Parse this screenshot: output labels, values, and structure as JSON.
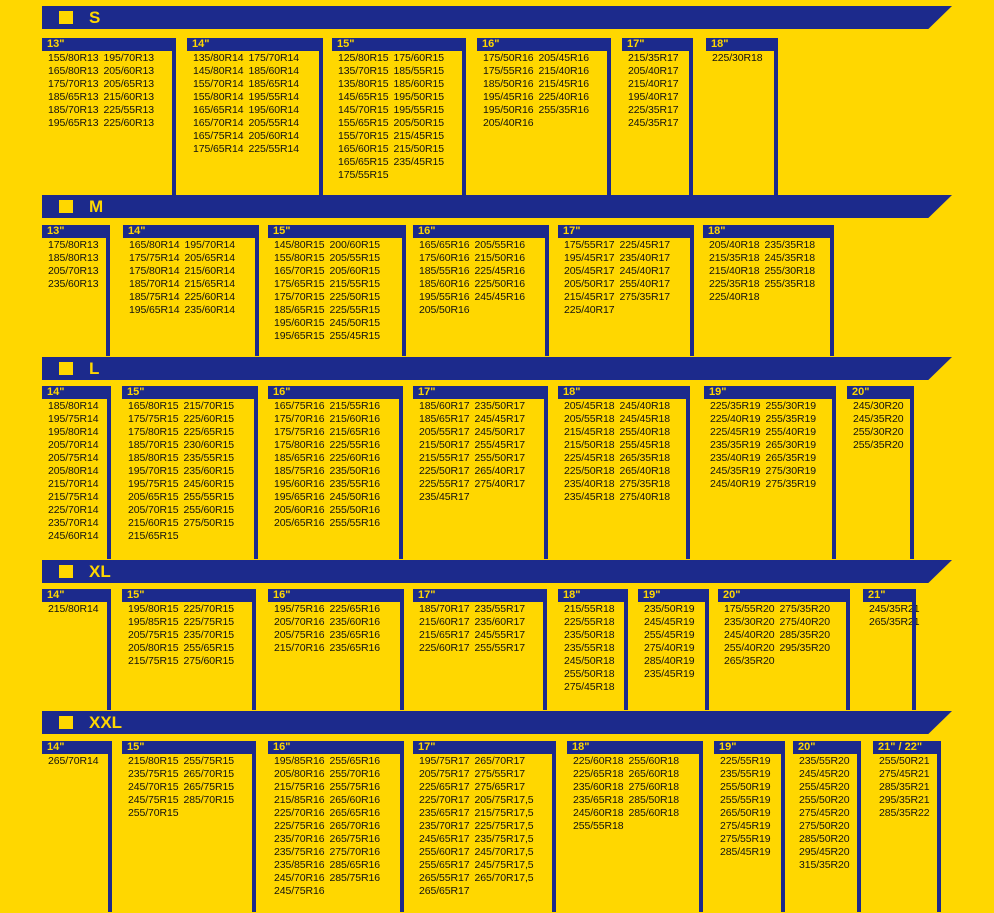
{
  "colors": {
    "background": "#FFD700",
    "navy": "#1C2A8C",
    "text": "#111111"
  },
  "sections": [
    {
      "label": "S",
      "columns": [
        {
          "head": "13\"",
          "tyres": [
            [
              "155/80R13",
              "165/80R13",
              "175/70R13",
              "185/65R13",
              "185/70R13",
              "195/65R13"
            ],
            [
              "195/70R13",
              "205/60R13",
              "205/65R13",
              "215/60R13",
              "225/55R13",
              "225/60R13"
            ]
          ]
        },
        {
          "head": "14\"",
          "tyres": [
            [
              "135/80R14",
              "145/80R14",
              "155/70R14",
              "155/80R14",
              "165/65R14",
              "165/70R14",
              "165/75R14",
              "175/65R14"
            ],
            [
              "175/70R14",
              "185/60R14",
              "185/65R14",
              "195/55R14",
              "195/60R14",
              "205/55R14",
              "205/60R14",
              "225/55R14"
            ]
          ]
        },
        {
          "head": "15\"",
          "tyres": [
            [
              "125/80R15",
              "135/70R15",
              "135/80R15",
              "145/65R15",
              "145/70R15",
              "155/65R15",
              "155/70R15",
              "165/60R15",
              "165/65R15",
              "175/55R15"
            ],
            [
              "175/60R15",
              "185/55R15",
              "185/60R15",
              "195/50R15",
              "195/55R15",
              "205/50R15",
              "215/45R15",
              "215/50R15",
              "235/45R15"
            ]
          ]
        },
        {
          "head": "16\"",
          "tyres": [
            [
              "175/50R16",
              "175/55R16",
              "185/50R16",
              "195/45R16",
              "195/50R16",
              "205/40R16"
            ],
            [
              "205/45R16",
              "215/40R16",
              "215/45R16",
              "225/40R16",
              "255/35R16"
            ]
          ]
        },
        {
          "head": "17\"",
          "tyres": [
            [
              "215/35R17",
              "205/40R17",
              "215/40R17",
              "195/40R17",
              "225/35R17",
              "245/35R17"
            ]
          ]
        },
        {
          "head": "18\"",
          "tyres": [
            [
              "225/30R18"
            ]
          ]
        }
      ]
    },
    {
      "label": "M",
      "columns": [
        {
          "head": "13\"",
          "tyres": [
            [
              "175/80R13",
              "185/80R13",
              "205/70R13",
              "235/60R13"
            ]
          ]
        },
        {
          "head": "14\"",
          "tyres": [
            [
              "165/80R14",
              "175/75R14",
              "175/80R14",
              "185/70R14",
              "185/75R14",
              "195/65R14"
            ],
            [
              "195/70R14",
              "205/65R14",
              "215/60R14",
              "215/65R14",
              "225/60R14",
              "235/60R14"
            ]
          ]
        },
        {
          "head": "15\"",
          "tyres": [
            [
              "145/80R15",
              "155/80R15",
              "165/70R15",
              "175/65R15",
              "175/70R15",
              "185/65R15",
              "195/60R15",
              "195/65R15"
            ],
            [
              "200/60R15",
              "205/55R15",
              "205/60R15",
              "215/55R15",
              "225/50R15",
              "225/55R15",
              "245/50R15",
              "255/45R15"
            ]
          ]
        },
        {
          "head": "16\"",
          "tyres": [
            [
              "165/65R16",
              "175/60R16",
              "185/55R16",
              "185/60R16",
              "195/55R16",
              "205/50R16"
            ],
            [
              "205/55R16",
              "215/50R16",
              "225/45R16",
              "225/50R16",
              "245/45R16"
            ]
          ]
        },
        {
          "head": "17\"",
          "tyres": [
            [
              "175/55R17",
              "195/45R17",
              "205/45R17",
              "205/50R17",
              "215/45R17",
              "225/40R17"
            ],
            [
              "225/45R17",
              "235/40R17",
              "245/40R17",
              "255/40R17",
              "275/35R17"
            ]
          ]
        },
        {
          "head": "18\"",
          "tyres": [
            [
              "205/40R18",
              "215/35R18",
              "215/40R18",
              "225/35R18",
              "225/40R18"
            ],
            [
              "235/35R18",
              "245/35R18",
              "255/30R18",
              "255/35R18"
            ]
          ]
        }
      ]
    },
    {
      "label": "L",
      "columns": [
        {
          "head": "14\"",
          "tyres": [
            [
              "185/80R14",
              "195/75R14",
              "195/80R14",
              "205/70R14",
              "205/75R14",
              "205/80R14",
              "215/70R14",
              "215/75R14",
              "225/70R14",
              "235/70R14",
              "245/60R14"
            ]
          ]
        },
        {
          "head": "15\"",
          "tyres": [
            [
              "165/80R15",
              "175/75R15",
              "175/80R15",
              "185/70R15",
              "185/80R15",
              "195/70R15",
              "195/75R15",
              "205/65R15",
              "205/70R15",
              "215/60R15",
              "215/65R15"
            ],
            [
              "215/70R15",
              "225/60R15",
              "225/65R15",
              "230/60R15",
              "235/55R15",
              "235/60R15",
              "245/60R15",
              "255/55R15",
              "255/60R15",
              "275/50R15"
            ]
          ]
        },
        {
          "head": "16\"",
          "tyres": [
            [
              "165/75R16",
              "175/70R16",
              "175/75R16",
              "175/80R16",
              "185/65R16",
              "185/75R16",
              "195/60R16",
              "195/65R16",
              "205/60R16",
              "205/65R16"
            ],
            [
              "215/55R16",
              "215/60R16",
              "215/65R16",
              "225/55R16",
              "225/60R16",
              "235/50R16",
              "235/55R16",
              "245/50R16",
              "255/50R16",
              "255/55R16"
            ]
          ]
        },
        {
          "head": "17\"",
          "tyres": [
            [
              "185/60R17",
              "185/65R17",
              "205/55R17",
              "215/50R17",
              "215/55R17",
              "225/50R17",
              "225/55R17",
              "235/45R17"
            ],
            [
              "235/50R17",
              "245/45R17",
              "245/50R17",
              "255/45R17",
              "255/50R17",
              "265/40R17",
              "275/40R17"
            ]
          ]
        },
        {
          "head": "18\"",
          "tyres": [
            [
              "205/45R18",
              "205/55R18",
              "215/45R18",
              "215/50R18",
              "225/45R18",
              "225/50R18",
              "235/40R18",
              "235/45R18"
            ],
            [
              "245/40R18",
              "245/45R18",
              "255/40R18",
              "255/45R18",
              "265/35R18",
              "265/40R18",
              "275/35R18",
              "275/40R18"
            ]
          ]
        },
        {
          "head": "19\"",
          "tyres": [
            [
              "225/35R19",
              "225/40R19",
              "225/45R19",
              "235/35R19",
              "235/40R19",
              "245/35R19",
              "245/40R19"
            ],
            [
              "255/30R19",
              "255/35R19",
              "255/40R19",
              "265/30R19",
              "265/35R19",
              "275/30R19",
              "275/35R19"
            ]
          ]
        },
        {
          "head": "20\"",
          "tyres": [
            [
              "245/30R20",
              "245/35R20",
              "255/30R20",
              "255/35R20"
            ]
          ]
        }
      ]
    },
    {
      "label": "XL",
      "columns": [
        {
          "head": "14\"",
          "tyres": [
            [
              "215/80R14"
            ]
          ]
        },
        {
          "head": "15\"",
          "tyres": [
            [
              "195/80R15",
              "195/85R15",
              "205/75R15",
              "205/80R15",
              "215/75R15"
            ],
            [
              "225/70R15",
              "225/75R15",
              "235/70R15",
              "255/65R15",
              "275/60R15"
            ]
          ]
        },
        {
          "head": "16\"",
          "tyres": [
            [
              "195/75R16",
              "205/70R16",
              "205/75R16",
              "215/70R16"
            ],
            [
              "225/65R16",
              "235/60R16",
              "235/65R16",
              "235/65R16"
            ]
          ]
        },
        {
          "head": "17\"",
          "tyres": [
            [
              "185/70R17",
              "215/60R17",
              "215/65R17",
              "225/60R17"
            ],
            [
              "235/55R17",
              "235/60R17",
              "245/55R17",
              "255/55R17"
            ]
          ]
        },
        {
          "head": "18\"",
          "tyres": [
            [
              "215/55R18",
              "225/55R18",
              "235/50R18",
              "235/55R18",
              "245/50R18",
              "255/50R18",
              "275/45R18"
            ]
          ]
        },
        {
          "head": "19\"",
          "tyres": [
            [
              "235/50R19",
              "245/45R19",
              "255/45R19",
              "275/40R19",
              "285/40R19",
              "235/45R19"
            ]
          ]
        },
        {
          "head": "20\"",
          "tyres": [
            [
              "175/55R20",
              "235/30R20",
              "245/40R20",
              "255/40R20",
              "265/35R20"
            ],
            [
              "275/35R20",
              "275/40R20",
              "285/35R20",
              "295/35R20"
            ]
          ]
        },
        {
          "head": "21\"",
          "tyres": [
            [
              "245/35R21",
              "265/35R21"
            ]
          ]
        }
      ]
    },
    {
      "label": "XXL",
      "columns": [
        {
          "head": "14\"",
          "tyres": [
            [
              "265/70R14"
            ]
          ]
        },
        {
          "head": "15\"",
          "tyres": [
            [
              "215/80R15",
              "235/75R15",
              "245/70R15",
              "245/75R15",
              "255/70R15"
            ],
            [
              "255/75R15",
              "265/70R15",
              "265/75R15",
              "285/70R15"
            ]
          ]
        },
        {
          "head": "16\"",
          "tyres": [
            [
              "195/85R16",
              "205/80R16",
              "215/75R16",
              "215/85R16",
              "225/70R16",
              "225/75R16",
              "235/70R16",
              "235/75R16",
              "235/85R16",
              "245/70R16",
              "245/75R16"
            ],
            [
              "255/65R16",
              "255/70R16",
              "255/75R16",
              "265/60R16",
              "265/65R16",
              "265/70R16",
              "265/75R16",
              "275/70R16",
              "285/65R16",
              "285/75R16"
            ]
          ]
        },
        {
          "head": "17\"",
          "tyres": [
            [
              "195/75R17",
              "205/75R17",
              "225/65R17",
              "225/70R17",
              "235/65R17",
              "235/70R17",
              "245/65R17",
              "255/60R17",
              "255/65R17",
              "265/55R17",
              "265/65R17"
            ],
            [
              "265/70R17",
              "275/55R17",
              "275/65R17",
              "205/75R17,5",
              "215/75R17,5",
              "225/75R17,5",
              "235/75R17,5",
              "245/70R17,5",
              "245/75R17,5",
              "265/70R17,5"
            ]
          ]
        },
        {
          "head": "18\"",
          "tyres": [
            [
              "225/60R18",
              "225/65R18",
              "235/60R18",
              "235/65R18",
              "245/60R18",
              "255/55R18"
            ],
            [
              "255/60R18",
              "265/60R18",
              "275/60R18",
              "285/50R18",
              "285/60R18"
            ]
          ]
        },
        {
          "head": "19\"",
          "tyres": [
            [
              "225/55R19",
              "235/55R19",
              "255/50R19",
              "255/55R19",
              "265/50R19",
              "275/45R19",
              "275/55R19",
              "285/45R19"
            ]
          ]
        },
        {
          "head": "20\"",
          "tyres": [
            [
              "235/55R20",
              "245/45R20",
              "255/45R20",
              "255/50R20",
              "275/45R20",
              "275/50R20",
              "285/50R20",
              "295/45R20",
              "315/35R20"
            ]
          ]
        },
        {
          "head": "21\" / 22\"",
          "tyres": [
            [
              "255/50R21",
              "275/45R21",
              "285/35R21",
              "295/35R21",
              "285/35R22"
            ]
          ]
        }
      ]
    }
  ]
}
